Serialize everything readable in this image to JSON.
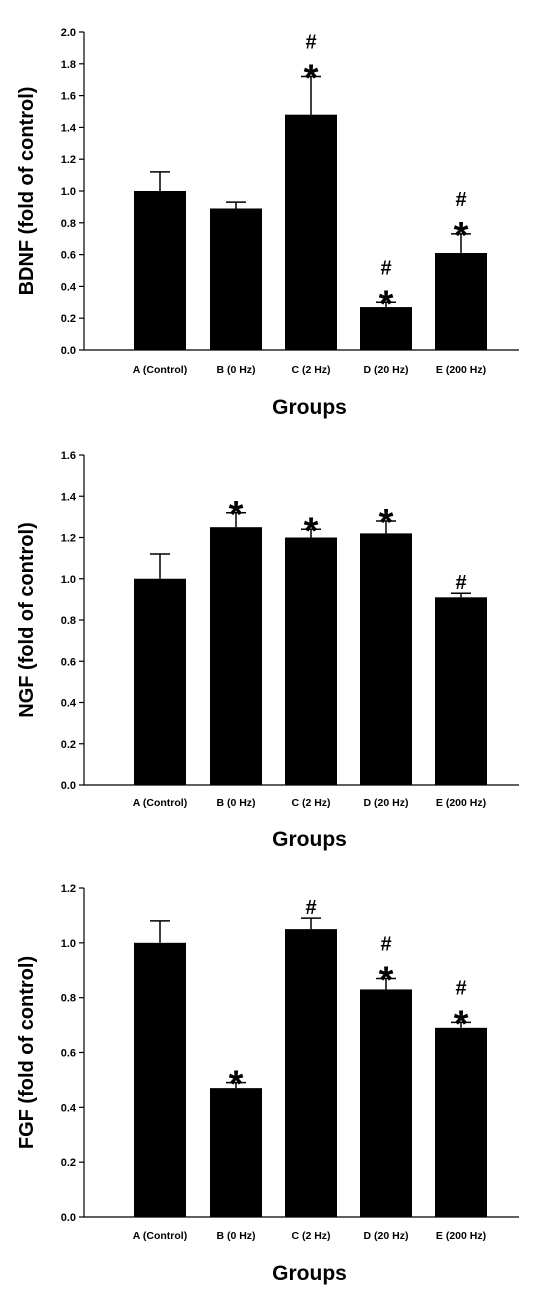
{
  "chart_data": [
    {
      "type": "bar",
      "categories": [
        "A (Control)",
        "B (0 Hz)",
        "C (2 Hz)",
        "D (20 Hz)",
        "E (200 Hz)"
      ],
      "values": [
        1.0,
        0.89,
        1.48,
        0.27,
        0.61
      ],
      "errors": [
        0.12,
        0.04,
        0.24,
        0.03,
        0.12
      ],
      "annotations": [
        [],
        [],
        [
          "#",
          "*"
        ],
        [
          "#",
          "*"
        ],
        [
          "#",
          "*"
        ]
      ],
      "xlabel": "Groups",
      "ylabel": "BDNF (fold of control)",
      "ylim": [
        0,
        2.0
      ],
      "yticks": [
        "0.0",
        "0.2",
        "0.4",
        "0.6",
        "0.8",
        "1.0",
        "1.2",
        "1.4",
        "1.6",
        "1.8",
        "2.0"
      ],
      "color": "#000000",
      "grid": false
    },
    {
      "type": "bar",
      "categories": [
        "A (Control)",
        "B (0 Hz)",
        "C (2 Hz)",
        "D (20 Hz)",
        "E (200 Hz)"
      ],
      "values": [
        1.0,
        1.25,
        1.2,
        1.22,
        0.91
      ],
      "errors": [
        0.12,
        0.07,
        0.04,
        0.06,
        0.02
      ],
      "annotations": [
        [],
        [
          "*"
        ],
        [
          "*"
        ],
        [
          "*"
        ],
        [
          "#"
        ]
      ],
      "xlabel": "Groups",
      "ylabel": "NGF (fold of control)",
      "ylim": [
        0,
        1.6
      ],
      "yticks": [
        "0.0",
        "0.2",
        "0.4",
        "0.6",
        "0.8",
        "1.0",
        "1.2",
        "1.4",
        "1.6"
      ],
      "color": "#000000",
      "grid": false
    },
    {
      "type": "bar",
      "categories": [
        "A (Control)",
        "B (0 Hz)",
        "C (2 Hz)",
        "D (20 Hz)",
        "E (200 Hz)"
      ],
      "values": [
        1.0,
        0.47,
        1.05,
        0.83,
        0.69
      ],
      "errors": [
        0.08,
        0.02,
        0.04,
        0.04,
        0.02
      ],
      "annotations": [
        [],
        [
          "*"
        ],
        [
          "#"
        ],
        [
          "#",
          "*"
        ],
        [
          "#",
          "*"
        ]
      ],
      "xlabel": "Groups",
      "ylabel": "FGF (fold of control)",
      "ylim": [
        0,
        1.2
      ],
      "yticks": [
        "0.0",
        "0.2",
        "0.4",
        "0.6",
        "0.8",
        "1.0",
        "1.2"
      ],
      "color": "#000000",
      "grid": false
    }
  ]
}
